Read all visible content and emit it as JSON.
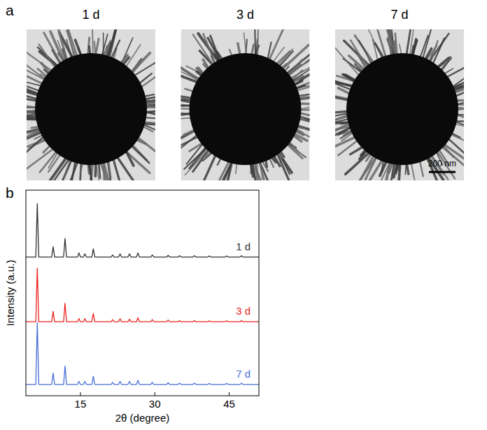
{
  "panel_a": {
    "label": "a",
    "images": [
      "1 d",
      "3 d",
      "7 d"
    ],
    "scale_bar": "200 nm"
  },
  "chart_data": {
    "type": "line",
    "label": "b",
    "x_label": "2θ (degree)",
    "y_label": "Intensity (a.u.)",
    "xlim": [
      4,
      51
    ],
    "xticks": [
      15,
      30,
      45
    ],
    "ylim": [
      0,
      100
    ],
    "tick_labels": "x",
    "x": [
      4,
      6.0,
      6.3,
      6.6,
      9.2,
      9.5,
      9.8,
      11.6,
      11.9,
      12.2,
      14.4,
      14.7,
      15.0,
      15.6,
      15.9,
      16.2,
      17.3,
      17.6,
      17.9,
      21.2,
      21.5,
      21.8,
      22.7,
      23.0,
      23.3,
      24.6,
      24.9,
      25.2,
      26.3,
      26.6,
      26.9,
      29.2,
      29.5,
      29.8,
      32.4,
      32.7,
      33.0,
      34.7,
      35.0,
      35.3,
      37.7,
      38.0,
      38.3,
      40.7,
      41.0,
      41.3,
      44.2,
      44.5,
      44.8,
      47.2,
      47.5,
      47.8,
      51
    ],
    "series": [
      {
        "name": "1 d",
        "color": "#333333",
        "values": [
          67.5,
          67.5,
          93.5,
          67.5,
          67.5,
          72.5,
          67.5,
          67.5,
          76.5,
          67.5,
          67.5,
          69.5,
          67.5,
          67.5,
          69,
          67.5,
          67.5,
          71.5,
          67.5,
          67.5,
          68.5,
          67.5,
          67.5,
          69,
          67.5,
          67.5,
          69,
          67.5,
          67.5,
          69.5,
          67.5,
          67.5,
          68.5,
          67.5,
          67.5,
          68.3,
          67.5,
          67.5,
          68.1,
          67.5,
          67.5,
          68.1,
          67.5,
          67.5,
          68,
          67.5,
          67.5,
          68,
          67.5,
          67.5,
          68.1,
          67.5,
          67.5
        ]
      },
      {
        "name": "3 d",
        "color": "#e8251f",
        "values": [
          36,
          36,
          62,
          36,
          36,
          41,
          36,
          36,
          45,
          36,
          36,
          37.5,
          36,
          36,
          37.5,
          36,
          36,
          40,
          36,
          36,
          37,
          36,
          36,
          37.5,
          36,
          36,
          37.2,
          36,
          36,
          38,
          36,
          36,
          37,
          36,
          36,
          36.8,
          36,
          36,
          36.6,
          36,
          36,
          36.6,
          36,
          36,
          36.5,
          36,
          36,
          36.5,
          36,
          36,
          36.6,
          36,
          36
        ]
      },
      {
        "name": "7 d",
        "color": "#4a6fd6",
        "values": [
          5.5,
          5.5,
          35.5,
          5.5,
          5.5,
          11,
          5.5,
          5.5,
          14.5,
          5.5,
          5.5,
          7,
          5.5,
          5.5,
          7,
          5.5,
          5.5,
          9.5,
          5.5,
          5.5,
          6.5,
          5.5,
          5.5,
          7,
          5.5,
          5.5,
          7,
          5.5,
          5.5,
          7.5,
          5.5,
          5.5,
          6.5,
          5.5,
          5.5,
          6.3,
          5.5,
          5.5,
          6.1,
          5.5,
          5.5,
          6.1,
          5.5,
          5.5,
          6,
          5.5,
          5.5,
          6,
          5.5,
          5.5,
          6.1,
          5.5,
          5.5
        ]
      }
    ]
  }
}
